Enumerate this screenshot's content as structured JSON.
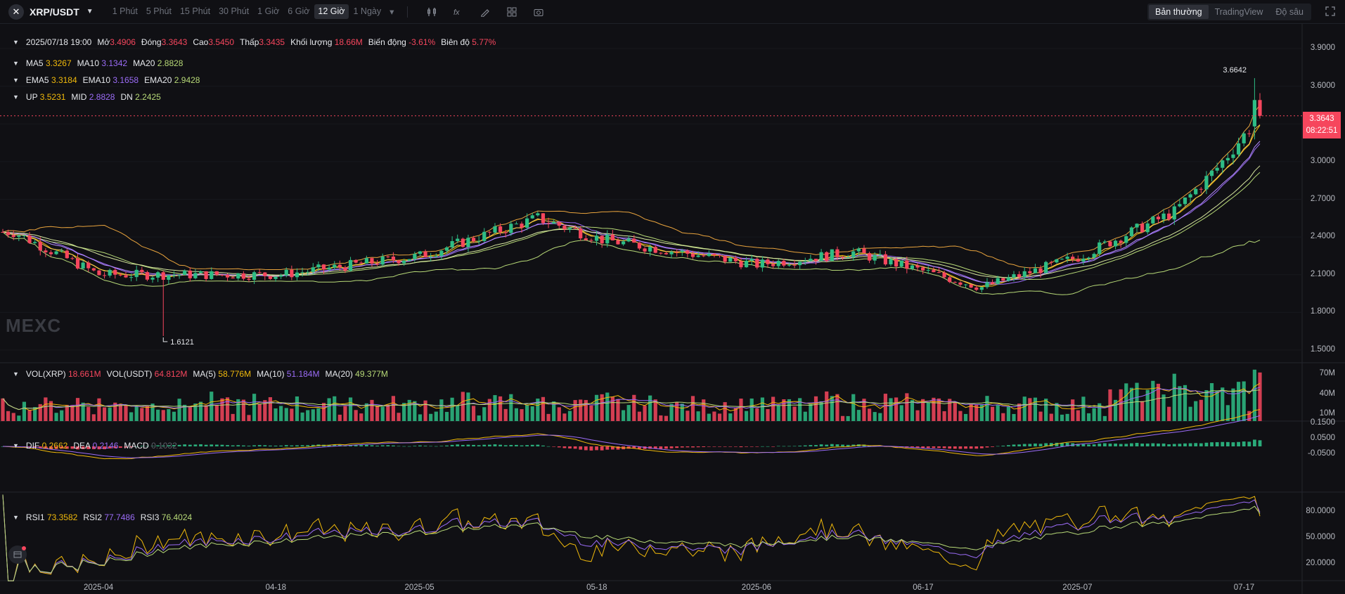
{
  "toolbar": {
    "symbol": "XRP/USDT",
    "intervals": [
      "1 Phút",
      "5 Phút",
      "15 Phút",
      "30 Phút",
      "1 Giờ",
      "6 Giờ",
      "12 Giờ",
      "1 Ngày"
    ],
    "active_interval": "12 Giờ",
    "views": [
      "Bản thường",
      "TradingView",
      "Độ sâu"
    ],
    "active_view": "Bản thường",
    "icons": [
      "candle-type-icon",
      "indicator-icon",
      "draw-icon",
      "layout-icon",
      "camera-icon"
    ]
  },
  "ohlc": {
    "date": "2025/07/18 19:00",
    "open_label": "Mở",
    "open": "3.4906",
    "close_label": "Đóng",
    "close": "3.3643",
    "high_label": "Cao",
    "high": "3.5450",
    "low_label": "Thấp",
    "low": "3.3435",
    "volume_label": "Khối lượng",
    "volume": "18.66M",
    "change_label": "Biến động",
    "change": "-3.61%",
    "amplitude_label": "Biên độ",
    "amplitude": "5.77%"
  },
  "ma": {
    "ma5_label": "MA5",
    "ma5": "3.3267",
    "ma10_label": "MA10",
    "ma10": "3.1342",
    "ma20_label": "MA20",
    "ma20": "2.8828"
  },
  "ema": {
    "ema5_label": "EMA5",
    "ema5": "3.3184",
    "ema10_label": "EMA10",
    "ema10": "3.1658",
    "ema20_label": "EMA20",
    "ema20": "2.9428"
  },
  "boll": {
    "up_label": "UP",
    "up": "3.5231",
    "mid_label": "MID",
    "mid": "2.8828",
    "dn_label": "DN",
    "dn": "2.2425"
  },
  "vol": {
    "xrp_label": "VOL(XRP)",
    "xrp": "18.661M",
    "usdt_label": "VOL(USDT)",
    "usdt": "64.812M",
    "ma5_label": "MA(5)",
    "ma5": "58.776M",
    "ma10_label": "MA(10)",
    "ma10": "51.184M",
    "ma20_label": "MA(20)",
    "ma20": "49.377M"
  },
  "macd": {
    "dif_label": "DIF",
    "dif": "0.2662",
    "dea_label": "DEA",
    "dea": "0.2146",
    "macd_label": "MACD",
    "macd": "0.1032"
  },
  "rsi": {
    "rsi1_label": "RSI1",
    "rsi1": "73.3582",
    "rsi2_label": "RSI2",
    "rsi2": "77.7486",
    "rsi3_label": "RSI3",
    "rsi3": "76.4024"
  },
  "price_axis": [
    "3.9000",
    "3.6000",
    "3.3000",
    "3.0000",
    "2.7000",
    "2.4000",
    "2.1000",
    "1.8000",
    "1.5000"
  ],
  "volume_axis": [
    "70M",
    "40M",
    "10M"
  ],
  "macd_axis": [
    "0.1500",
    "0.0500",
    "-0.0500"
  ],
  "rsi_axis": [
    "80.0000",
    "50.0000",
    "20.0000"
  ],
  "date_axis": [
    "2025-04",
    "04-18",
    "2025-05",
    "05-18",
    "2025-06",
    "06-17",
    "2025-07",
    "07-17"
  ],
  "current_price": "3.3643",
  "countdown": "08:22:51",
  "high_marker": "3.6642",
  "low_marker": "1.6121",
  "watermark": "MEXC",
  "colors": {
    "up": "#2ebd85",
    "down": "#f6465d",
    "ma5": "#f0b90b",
    "ma10": "#9b6cf7",
    "ma20": "#b7d977"
  },
  "chart_data": {
    "type": "candlestick",
    "range": "2025-03-23 to 2025-07-18, 12h candles",
    "price_range": [
      1.45,
      4.0
    ],
    "anchor_points": [
      {
        "date": "2025-03-24",
        "close": 2.44
      },
      {
        "date": "2025-04-01",
        "close": 2.1
      },
      {
        "date": "2025-04-07",
        "low": 1.6121
      },
      {
        "date": "2025-04-18",
        "close": 2.1
      },
      {
        "date": "2025-05-01",
        "close": 2.25
      },
      {
        "date": "2025-05-12",
        "close": 2.55
      },
      {
        "date": "2025-05-18",
        "close": 2.38
      },
      {
        "date": "2025-06-01",
        "close": 2.18
      },
      {
        "date": "2025-06-10",
        "close": 2.28
      },
      {
        "date": "2025-06-22",
        "close": 2.0
      },
      {
        "date": "2025-07-01",
        "close": 2.24
      },
      {
        "date": "2025-07-10",
        "close": 2.6
      },
      {
        "date": "2025-07-14",
        "close": 2.95
      },
      {
        "date": "2025-07-18",
        "high": 3.6642,
        "close": 3.3643
      }
    ]
  }
}
